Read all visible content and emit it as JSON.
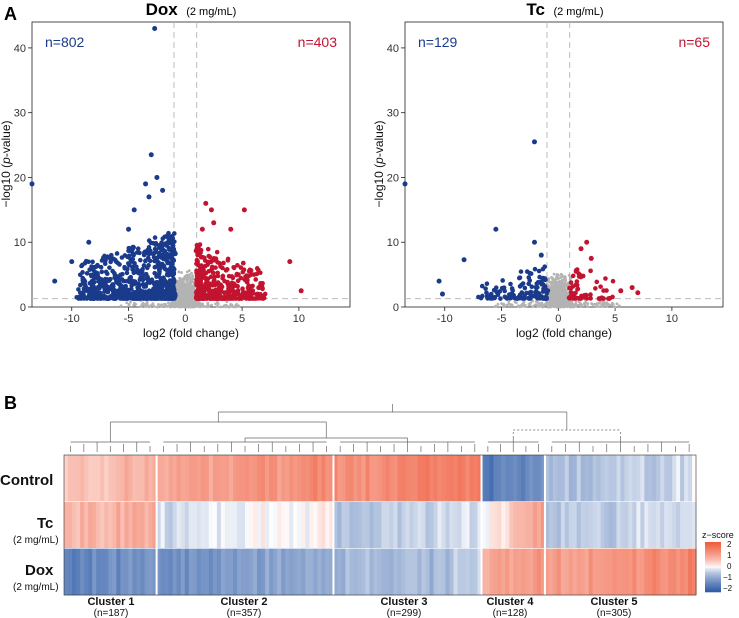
{
  "colors": {
    "down": "#1a3a8c",
    "up": "#c2132f",
    "ns": "#b3b3b3",
    "threshold": "#bdbdbd",
    "heat_high": "#ef5a3a",
    "heat_mid": "#ffffff",
    "heat_low": "#2c5aa6"
  },
  "panel_a": {
    "letter": "A",
    "plots": [
      {
        "title": "Dox",
        "subtitle": "(2 mg/mL)",
        "down_label": "n=802",
        "up_label": "n=403",
        "xlabel": "log2 (fold change)",
        "ylabel_prefix": "−log10 (",
        "ylabel_italic": "p",
        "ylabel_suffix": "-value)"
      },
      {
        "title": "Tc",
        "subtitle": "(2 mg/mL)",
        "down_label": "n=129",
        "up_label": "n=65",
        "xlabel": "log2 (fold change)",
        "ylabel_prefix": "−log10 (",
        "ylabel_italic": "p",
        "ylabel_suffix": "-value)"
      }
    ]
  },
  "panel_b": {
    "letter": "B",
    "rows": [
      {
        "label": "Control",
        "sub": ""
      },
      {
        "label": "Tc",
        "sub": "(2 mg/mL)"
      },
      {
        "label": "Dox",
        "sub": "(2 mg/mL)"
      }
    ],
    "clusters": [
      {
        "name": "Cluster 1",
        "count": "(n=187)"
      },
      {
        "name": "Cluster 2",
        "count": "(n=357)"
      },
      {
        "name": "Cluster 3",
        "count": "(n=299)"
      },
      {
        "name": "Cluster 4",
        "count": "(n=128)"
      },
      {
        "name": "Cluster 5",
        "count": "(n=305)"
      }
    ],
    "legend": {
      "title": "z−score",
      "ticks": [
        "2",
        "1",
        "0",
        "−1",
        "−2"
      ],
      "tick_values": [
        2,
        1,
        0,
        -1,
        -2
      ]
    }
  },
  "chart_data": [
    {
      "type": "scatter",
      "kind": "volcano",
      "title": "Dox (2 mg/mL)",
      "xlabel": "log2 (fold change)",
      "ylabel": "−log10 (p-value)",
      "xlim": [
        -13.5,
        14.5
      ],
      "ylim": [
        0,
        44
      ],
      "xticks": [
        -10,
        -5,
        0,
        5,
        10
      ],
      "yticks": [
        0,
        10,
        20,
        30,
        40
      ],
      "fc_threshold": [
        -1,
        1
      ],
      "p_threshold": 1.3,
      "annotations": {
        "down": "n=802",
        "up": "n=403"
      },
      "series": [
        {
          "name": "down",
          "color": "#1a3a8c",
          "count_shown": 802,
          "notable_points": [
            [
              -2.7,
              43
            ],
            [
              -3.0,
              23.5
            ],
            [
              -13.5,
              19
            ],
            [
              -2.5,
              20
            ],
            [
              -3.5,
              19
            ],
            [
              -2.0,
              18
            ],
            [
              -4.5,
              15
            ],
            [
              -3.2,
              17
            ],
            [
              -5.0,
              12
            ],
            [
              -8.5,
              10
            ],
            [
              -10,
              7
            ],
            [
              -11.5,
              4
            ]
          ],
          "bulk": {
            "x_range": [
              -9.5,
              -1
            ],
            "y_range": [
              1.3,
              12
            ]
          }
        },
        {
          "name": "up",
          "color": "#c2132f",
          "count_shown": 403,
          "notable_points": [
            [
              2.3,
              15
            ],
            [
              1.8,
              16
            ],
            [
              5.2,
              15
            ],
            [
              2.5,
              13
            ],
            [
              1.5,
              12
            ],
            [
              4,
              12
            ],
            [
              9.2,
              7
            ],
            [
              10.2,
              2.5
            ],
            [
              6.5,
              3
            ]
          ],
          "bulk": {
            "x_range": [
              1,
              7
            ],
            "y_range": [
              1.3,
              10
            ]
          }
        },
        {
          "name": "not significant",
          "color": "#b3b3b3",
          "bulk": {
            "x_range": [
              -2,
              2
            ],
            "y_range": [
              0,
              6
            ]
          }
        }
      ]
    },
    {
      "type": "scatter",
      "kind": "volcano",
      "title": "Tc (2 mg/mL)",
      "xlabel": "log2 (fold change)",
      "ylabel": "−log10 (p-value)",
      "xlim": [
        -13.5,
        14.5
      ],
      "ylim": [
        0,
        44
      ],
      "xticks": [
        -10,
        -5,
        0,
        5,
        10
      ],
      "yticks": [
        0,
        10,
        20,
        30,
        40
      ],
      "fc_threshold": [
        -1,
        1
      ],
      "p_threshold": 1.3,
      "annotations": {
        "down": "n=129",
        "up": "n=65"
      },
      "series": [
        {
          "name": "down",
          "color": "#1a3a8c",
          "count_shown": 129,
          "notable_points": [
            [
              -2.1,
              25.5
            ],
            [
              -13.5,
              19
            ],
            [
              -5.5,
              12
            ],
            [
              -8.3,
              7.3
            ],
            [
              -10.5,
              4
            ],
            [
              -10.2,
              2
            ],
            [
              -2.1,
              10
            ],
            [
              -1.5,
              8
            ]
          ],
          "bulk": {
            "x_range": [
              -7,
              -1
            ],
            "y_range": [
              1.3,
              6.5
            ]
          }
        },
        {
          "name": "up",
          "color": "#c2132f",
          "count_shown": 65,
          "notable_points": [
            [
              2.5,
              10
            ],
            [
              2.0,
              9
            ],
            [
              2.9,
              7.5
            ],
            [
              6.5,
              3
            ],
            [
              7.0,
              2.2
            ],
            [
              5.5,
              2.5
            ]
          ],
          "bulk": {
            "x_range": [
              1,
              5
            ],
            "y_range": [
              1.3,
              7
            ]
          }
        },
        {
          "name": "not significant",
          "color": "#b3b3b3",
          "bulk": {
            "x_range": [
              -2,
              2
            ],
            "y_range": [
              0,
              5
            ]
          }
        }
      ]
    },
    {
      "type": "heatmap",
      "title": "",
      "value_label": "z−score",
      "zlim": [
        -2,
        2
      ],
      "rows": [
        "Control",
        "Tc (2 mg/mL)",
        "Dox (2 mg/mL)"
      ],
      "columns": [
        "Cluster 1 (n=187)",
        "Cluster 2 (n=357)",
        "Cluster 3 (n=299)",
        "Cluster 4 (n=128)",
        "Cluster 5 (n=305)"
      ],
      "approx_mean_values": [
        [
          0.6,
          1.1,
          1.3,
          -1.3,
          -0.4
        ],
        [
          0.7,
          -0.1,
          -0.35,
          0.5,
          -0.35
        ],
        [
          -1.2,
          -1.0,
          -0.6,
          1.0,
          1.1
        ]
      ]
    }
  ]
}
